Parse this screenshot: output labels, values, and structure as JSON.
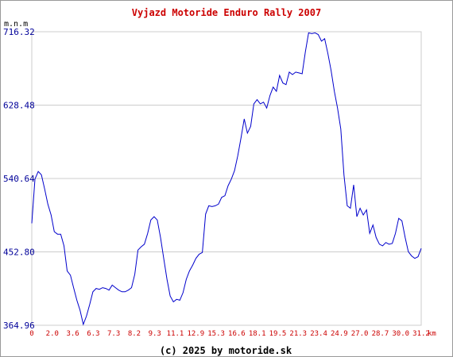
{
  "chart_data": {
    "type": "line",
    "title": "Vyjazd Motoride Enduro Rally 2007",
    "ylabel": "m.n.m",
    "xlabel": "km",
    "footer": "(c) 2025 by motoride.sk",
    "yticks": [
      "716.32",
      "628.48",
      "540.64",
      "452.80",
      "364.96"
    ],
    "xticks": [
      "0",
      "2.0",
      "3.6",
      "6.3",
      "7.3",
      "8.2",
      "9.3",
      "11.1",
      "12.9",
      "15.3",
      "16.6",
      "18.1",
      "19.5",
      "21.3",
      "23.4",
      "24.9",
      "27.0",
      "28.7",
      "30.0",
      "31.2"
    ],
    "ylim": [
      364.96,
      716.32
    ],
    "grid": true,
    "colors": {
      "title": "#cc0000",
      "line": "#0000cc",
      "ytick": "#000099",
      "xtick": "#cc0000",
      "grid": "#cccccc"
    },
    "series": [
      {
        "values": [
          487,
          540,
          549,
          545,
          528,
          510,
          497,
          477,
          474,
          474,
          460,
          430,
          425,
          410,
          395,
          383,
          366,
          376,
          390,
          405,
          409,
          408,
          410,
          409,
          407,
          413,
          410,
          407,
          405,
          405,
          407,
          410,
          426,
          455,
          459,
          462,
          475,
          491,
          495,
          491,
          470,
          445,
          420,
          400,
          393,
          396,
          395,
          404,
          420,
          430,
          437,
          445,
          450,
          452,
          498,
          508,
          507,
          508,
          510,
          518,
          520,
          532,
          540,
          550,
          568,
          589,
          612,
          595,
          603,
          630,
          635,
          630,
          632,
          625,
          640,
          650,
          645,
          664,
          655,
          653,
          668,
          665,
          668,
          667,
          666,
          692,
          715,
          714,
          715,
          713,
          705,
          708,
          690,
          670,
          645,
          625,
          600,
          545,
          508,
          505,
          533,
          495,
          505,
          497,
          503,
          475,
          485,
          470,
          462,
          460,
          464,
          462,
          463,
          475,
          493,
          490,
          470,
          453,
          448,
          445,
          447,
          457
        ]
      }
    ]
  }
}
